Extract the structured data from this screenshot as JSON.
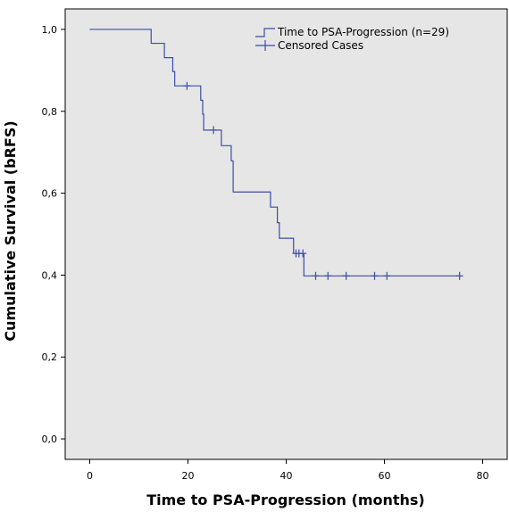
{
  "chart_data": {
    "type": "line",
    "title": "",
    "xlabel": "Time to PSA-Progression (months)",
    "ylabel": "Cumulative Survival (bRFS)",
    "xlim": [
      -5,
      85
    ],
    "ylim": [
      -0.05,
      1.05
    ],
    "xticks": [
      0,
      20,
      40,
      60,
      80
    ],
    "xtick_labels": [
      "0",
      "20",
      "40",
      "60",
      "80"
    ],
    "yticks": [
      0.0,
      0.2,
      0.4,
      0.6,
      0.8,
      1.0
    ],
    "ytick_labels": [
      "0,0",
      "0,2",
      "0,4",
      "0,6",
      "0,8",
      "1,0"
    ],
    "grid": false,
    "legend_position": "top-right",
    "series": [
      {
        "name": "Time to PSA-Progression (n=29)",
        "style": "step",
        "color": "#3b4ea6",
        "points": [
          [
            0,
            1.0
          ],
          [
            12.5,
            0.966
          ],
          [
            15.2,
            0.931
          ],
          [
            16.9,
            0.897
          ],
          [
            17.3,
            0.862
          ],
          [
            22.6,
            0.827
          ],
          [
            23.0,
            0.793
          ],
          [
            23.2,
            0.754
          ],
          [
            26.8,
            0.716
          ],
          [
            28.8,
            0.679
          ],
          [
            29.2,
            0.603
          ],
          [
            36.8,
            0.566
          ],
          [
            38.2,
            0.528
          ],
          [
            38.6,
            0.49
          ],
          [
            41.5,
            0.453
          ],
          [
            43.6,
            0.398
          ],
          [
            75.3,
            0.398
          ]
        ]
      },
      {
        "name": "Censored Cases",
        "style": "censor",
        "color": "#3b4ea6",
        "points": [
          [
            19.8,
            0.862
          ],
          [
            25.2,
            0.754
          ],
          [
            42.0,
            0.453
          ],
          [
            42.6,
            0.453
          ],
          [
            43.4,
            0.453
          ],
          [
            46.0,
            0.398
          ],
          [
            48.5,
            0.398
          ],
          [
            52.2,
            0.398
          ],
          [
            58.0,
            0.398
          ],
          [
            60.5,
            0.398
          ],
          [
            75.3,
            0.398
          ]
        ]
      }
    ]
  },
  "colors": {
    "plot_background": "#e6e6e6",
    "line": "#3b4ea6"
  }
}
